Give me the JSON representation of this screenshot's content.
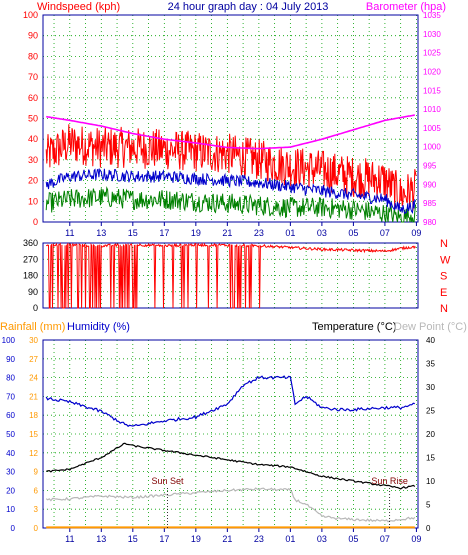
{
  "header": {
    "windspeed_label": "Windspeed (kph)",
    "title": "24 hour graph day : 04 July 2013",
    "barometer_label": "Barometer (hpa)"
  },
  "lower_header": {
    "rainfall_label": "Rainfall (mm)",
    "humidity_label": "Humidity (%)",
    "temperature_label": "Temperature (°C)",
    "dewpoint_label": "Dew Point (°C)"
  },
  "annotations": {
    "sunset": "Sun Set",
    "sunrise": "Sun Rise"
  },
  "colors": {
    "wind_gust": "#ff0000",
    "wind_avg": "#0000cc",
    "wind_low": "#008000",
    "barometer": "#ff00ff",
    "direction": "#ff0000",
    "humidity": "#0000cc",
    "temperature": "#000000",
    "dewpoint": "#b8b8b8",
    "rainfall": "#ff9900",
    "axis": "#0000a0",
    "grid": "#00a000"
  },
  "chart_data": [
    {
      "type": "line",
      "title": "24 hour graph day : 04 July 2013",
      "x_ticks": [
        "11",
        "13",
        "15",
        "17",
        "19",
        "21",
        "23",
        "01",
        "03",
        "05",
        "07",
        "09"
      ],
      "x_range_hours": [
        9.3,
        33.1
      ],
      "y_left": {
        "label": "Windspeed (kph)",
        "ticks": [
          0,
          10,
          20,
          30,
          40,
          50,
          60,
          70,
          80,
          90,
          100
        ],
        "range": [
          0,
          100
        ]
      },
      "y_right": {
        "label": "Barometer (hpa)",
        "ticks": [
          980,
          985,
          990,
          995,
          1000,
          1005,
          1010,
          1015,
          1020,
          1025,
          1030,
          1035
        ],
        "range": [
          980,
          1035
        ]
      },
      "series": [
        {
          "axis": "left",
          "x": [
            9.5,
            11,
            13,
            15,
            17,
            19,
            21,
            23,
            25,
            27,
            29,
            31,
            32,
            33
          ],
          "values": [
            32,
            38,
            36,
            36,
            35,
            34,
            33,
            30,
            27,
            25,
            22,
            20,
            13,
            16
          ]
        },
        {
          "axis": "left",
          "x": [
            9.5,
            11,
            13,
            15,
            17,
            19,
            21,
            23,
            25,
            27,
            29,
            31,
            32,
            33
          ],
          "values": [
            18,
            22,
            23,
            22,
            22,
            21,
            20,
            19,
            17,
            15,
            13,
            11,
            6,
            8
          ]
        },
        {
          "axis": "left",
          "x": [
            9.5,
            11,
            13,
            15,
            17,
            19,
            21,
            23,
            25,
            27,
            29,
            31,
            32,
            33
          ],
          "values": [
            9,
            11,
            12,
            11,
            11,
            10,
            9,
            8,
            7,
            7,
            6,
            4,
            2,
            4
          ]
        },
        {
          "axis": "right",
          "name": "Barometer (hpa)",
          "x": [
            9.5,
            11,
            13,
            15,
            17,
            19,
            21,
            23,
            25,
            27,
            29,
            31,
            33
          ],
          "values": [
            1008,
            1007,
            1005.5,
            1003.5,
            1002,
            1001,
            999.8,
            999.5,
            999.9,
            1002,
            1004.5,
            1007,
            1008.5
          ]
        }
      ]
    },
    {
      "type": "scatter",
      "y_ticks": [
        0,
        90,
        180,
        270,
        360
      ],
      "y_range": [
        0,
        360
      ],
      "direction_labels": [
        "N",
        "W",
        "S",
        "E",
        "N"
      ],
      "note": "Wind direction mostly near 330-360 deg with frequent wraps to 0 before 23; afterwards around 300-340.",
      "x": [
        9.5,
        11,
        13,
        15,
        17,
        19,
        21,
        23,
        25,
        27,
        29,
        31,
        32,
        33
      ],
      "values": [
        350,
        350,
        345,
        350,
        345,
        350,
        348,
        345,
        335,
        325,
        320,
        315,
        330,
        340
      ]
    },
    {
      "type": "line",
      "y_left_outer": {
        "label": "Rainfall (mm)",
        "ticks": [
          0,
          3,
          6,
          9,
          12,
          15,
          18,
          21,
          24,
          27,
          30
        ],
        "range": [
          0,
          30
        ]
      },
      "y_left_inner": {
        "label": "Humidity (%)",
        "ticks": [
          0,
          10,
          20,
          30,
          40,
          50,
          60,
          70,
          80,
          90,
          100
        ],
        "range": [
          0,
          100
        ]
      },
      "y_right": {
        "label": "Temperature (°C) / Dew Point (°C)",
        "ticks": [
          0,
          5,
          10,
          15,
          20,
          25,
          30,
          35,
          40
        ],
        "range": [
          0,
          40
        ]
      },
      "series": [
        {
          "name": "Humidity (%)",
          "axis": "humidity",
          "x": [
            9.5,
            11,
            13,
            14.5,
            15,
            17,
            19,
            21,
            22,
            23,
            25,
            25.3,
            26,
            27,
            28,
            29,
            31,
            32,
            33
          ],
          "values": [
            69,
            67,
            62,
            55,
            54,
            57,
            59,
            66,
            76,
            80,
            80,
            66,
            70,
            64,
            63,
            63,
            64,
            64,
            66
          ]
        },
        {
          "name": "Temperature (°C)",
          "axis": "temperature",
          "x": [
            9.5,
            11,
            13,
            14.5,
            15,
            17,
            19,
            21,
            23,
            25,
            27,
            29,
            31,
            32,
            33
          ],
          "values": [
            12,
            12.5,
            15,
            18,
            17.5,
            16.5,
            15.5,
            14.5,
            13.5,
            13,
            11,
            10,
            9,
            8.5,
            9
          ]
        },
        {
          "name": "Dew Point (°C)",
          "axis": "temperature",
          "x": [
            9.5,
            11,
            13,
            15,
            17,
            19,
            21,
            23,
            25,
            25.3,
            26,
            27,
            28,
            29,
            31,
            33
          ],
          "values": [
            6,
            6.2,
            6.8,
            6.5,
            7,
            7.5,
            8,
            8.3,
            8.1,
            6,
            5,
            2.5,
            2,
            1.8,
            1.5,
            2.2
          ]
        },
        {
          "name": "Rainfall (mm)",
          "axis": "rainfall",
          "x": [
            9.5,
            33
          ],
          "values": [
            0.1,
            0.1
          ]
        }
      ],
      "markers": [
        {
          "label": "Sun Set",
          "x": 17.2
        },
        {
          "label": "Sun Rise",
          "x": 31.3
        }
      ]
    }
  ]
}
